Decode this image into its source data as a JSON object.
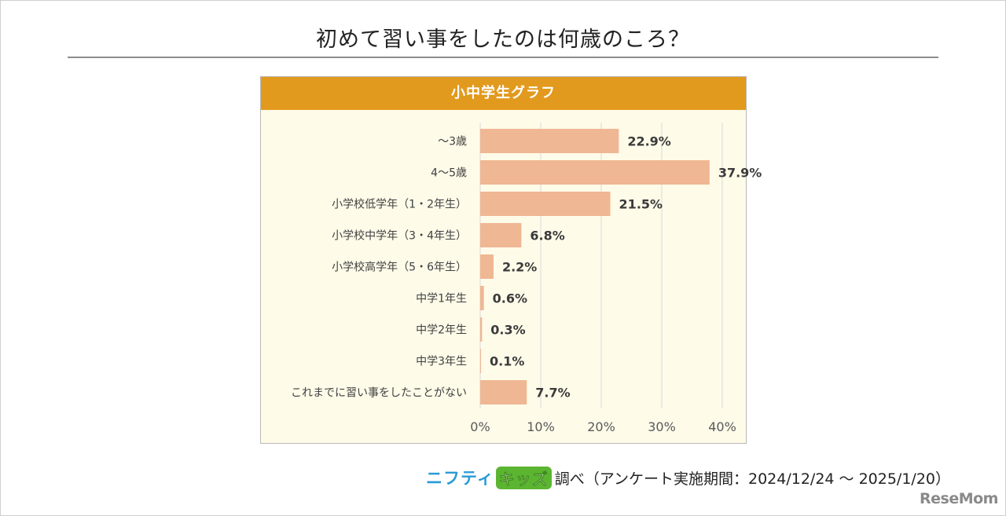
{
  "title": "初めて習い事をしたのは何歳のころ？",
  "chart_data": {
    "type": "bar",
    "orientation": "horizontal",
    "title": "小中学生グラフ",
    "categories": [
      "～3歳",
      "4～5歳",
      "小学校低学年（1・2年生）",
      "小学校中学年（3・4年生）",
      "小学校高学年（5・6年生）",
      "中学1年生",
      "中学2年生",
      "中学3年生",
      "これまでに習い事をしたことがない"
    ],
    "values": [
      22.9,
      37.9,
      21.5,
      6.8,
      2.2,
      0.6,
      0.3,
      0.1,
      7.7
    ],
    "value_labels": [
      "22.9%",
      "37.9%",
      "21.5%",
      "6.8%",
      "2.2%",
      "0.6%",
      "0.3%",
      "0.1%",
      "7.7%"
    ],
    "xlim": [
      0,
      40
    ],
    "xticks": [
      0,
      10,
      20,
      30,
      40
    ],
    "xtick_labels": [
      "0%",
      "10%",
      "20%",
      "30%",
      "40%"
    ],
    "grid": true,
    "xlabel": "",
    "ylabel": "",
    "bar_color": "#efb793"
  },
  "source": {
    "brand_part1": "ニフティ",
    "brand_part2": "キッズ",
    "text": "調べ（アンケート実施期間：2024/12/24 ～ 2025/1/20）"
  },
  "logo": "ReseMom"
}
